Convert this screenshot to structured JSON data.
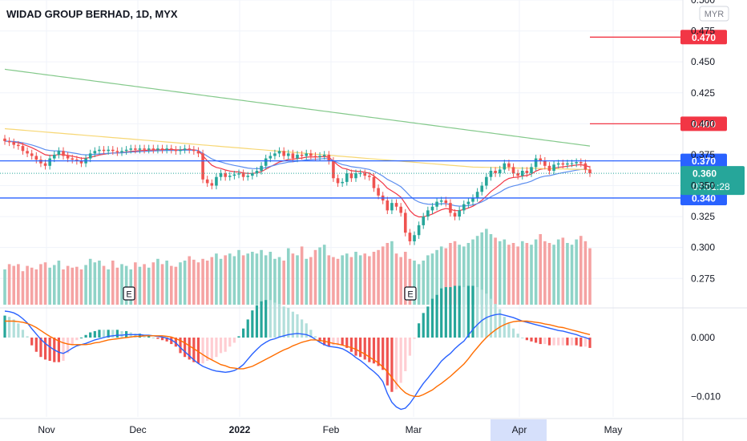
{
  "chart_data": {
    "type": "candlestick",
    "title": "WIDAD GROUP BERHAD, 1D, MYX",
    "currency": "MYR",
    "price_axis": {
      "range": [
        0.2525,
        0.5
      ],
      "ticks": [
        "0.500",
        "0.475",
        "0.450",
        "0.425",
        "0.400",
        "0.375",
        "0.350",
        "0.325",
        "0.300",
        "0.275"
      ]
    },
    "time_axis": {
      "labels": [
        "Nov",
        "Dec",
        "2022",
        "Feb",
        "Mar",
        "Apr",
        "May"
      ],
      "highlighted": "Apr"
    },
    "price_labels": [
      {
        "text": "0.470",
        "value": 0.47,
        "color": "#f23645",
        "kind": "line"
      },
      {
        "text": "0.400",
        "value": 0.4,
        "color": "#f23645",
        "kind": "line"
      },
      {
        "text": "0.370",
        "value": 0.37,
        "color": "#2962ff",
        "kind": "line"
      },
      {
        "text": "0.340",
        "value": 0.34,
        "color": "#2962ff",
        "kind": "line"
      },
      {
        "text": "0.360",
        "subtext": "07:01:28",
        "value": 0.36,
        "color": "#26a69a",
        "kind": "last"
      }
    ],
    "closes": [
      0.386,
      0.385,
      0.383,
      0.382,
      0.378,
      0.376,
      0.374,
      0.371,
      0.368,
      0.366,
      0.372,
      0.375,
      0.378,
      0.374,
      0.372,
      0.371,
      0.37,
      0.368,
      0.372,
      0.376,
      0.378,
      0.379,
      0.378,
      0.379,
      0.378,
      0.377,
      0.378,
      0.379,
      0.38,
      0.379,
      0.38,
      0.379,
      0.38,
      0.379,
      0.38,
      0.379,
      0.38,
      0.379,
      0.378,
      0.379,
      0.38,
      0.379,
      0.378,
      0.376,
      0.355,
      0.352,
      0.35,
      0.357,
      0.36,
      0.357,
      0.358,
      0.359,
      0.36,
      0.357,
      0.358,
      0.36,
      0.362,
      0.366,
      0.372,
      0.374,
      0.376,
      0.378,
      0.374,
      0.376,
      0.372,
      0.375,
      0.374,
      0.376,
      0.374,
      0.373,
      0.374,
      0.375,
      0.37,
      0.356,
      0.352,
      0.353,
      0.36,
      0.356,
      0.36,
      0.36,
      0.358,
      0.357,
      0.348,
      0.342,
      0.338,
      0.33,
      0.336,
      0.333,
      0.328,
      0.312,
      0.305,
      0.31,
      0.318,
      0.325,
      0.33,
      0.333,
      0.337,
      0.338,
      0.336,
      0.328,
      0.325,
      0.33,
      0.335,
      0.337,
      0.34,
      0.345,
      0.35,
      0.357,
      0.362,
      0.36,
      0.363,
      0.368,
      0.365,
      0.36,
      0.358,
      0.362,
      0.36,
      0.365,
      0.372,
      0.37,
      0.366,
      0.362,
      0.367,
      0.368,
      0.367,
      0.368,
      0.368,
      0.369,
      0.368,
      0.363,
      0.36
    ],
    "volume": {
      "axis_hidden": true,
      "values": [
        40,
        46,
        44,
        46,
        38,
        44,
        42,
        40,
        46,
        48,
        42,
        45,
        50,
        40,
        44,
        42,
        43,
        40,
        45,
        52,
        48,
        50,
        44,
        40,
        50,
        42,
        46,
        44,
        40,
        48,
        43,
        46,
        42,
        48,
        52,
        46,
        50,
        44,
        43,
        48,
        50,
        55,
        51,
        48,
        52,
        50,
        54,
        58,
        52,
        56,
        58,
        55,
        62,
        56,
        58,
        60,
        58,
        62,
        56,
        60,
        52,
        54,
        50,
        64,
        58,
        56,
        66,
        52,
        54,
        62,
        65,
        68,
        56,
        54,
        52,
        56,
        58,
        54,
        60,
        56,
        58,
        55,
        60,
        62,
        66,
        70,
        72,
        58,
        54,
        60,
        52,
        50,
        46,
        50,
        56,
        58,
        62,
        66,
        64,
        70,
        72,
        68,
        66,
        70,
        74,
        78,
        82,
        86,
        80,
        76,
        72,
        74,
        68,
        70,
        66,
        72,
        70,
        68,
        74,
        80,
        72,
        70,
        68,
        74,
        76,
        70,
        68,
        74,
        78,
        72,
        64
      ],
      "earnings_markers": [
        "E",
        "E"
      ]
    },
    "macd": {
      "axis": {
        "range": [
          -0.0135,
          0.0045
        ],
        "ticks": [
          "0.000",
          "−0.010"
        ]
      },
      "macd_line": [
        0.0045,
        0.0044,
        0.0042,
        0.0038,
        0.0032,
        0.0025,
        0.0015,
        0.0006,
        -0.0003,
        -0.001,
        -0.0016,
        -0.0021,
        -0.0025,
        -0.0027,
        -0.0023,
        -0.0018,
        -0.0014,
        -0.0012,
        -0.001,
        -0.0007,
        -0.0004,
        -0.0002,
        0.0,
        0.0002,
        0.0003,
        0.0004,
        0.0004,
        0.0005,
        0.0005,
        0.0005,
        0.0005,
        0.0004,
        0.0004,
        0.0003,
        0.0002,
        0.0001,
        -0.0001,
        -0.0004,
        -0.0009,
        -0.0017,
        -0.0024,
        -0.0031,
        -0.0038,
        -0.0044,
        -0.0049,
        -0.0052,
        -0.0055,
        -0.0057,
        -0.0058,
        -0.0059,
        -0.0058,
        -0.0056,
        -0.0052,
        -0.0046,
        -0.0037,
        -0.0028,
        -0.002,
        -0.0013,
        -0.0008,
        -0.0004,
        -0.0002,
        0.0001,
        0.0003,
        0.0005,
        0.0006,
        0.0007,
        0.0006,
        0.0005,
        0.0002,
        -0.0003,
        -0.0008,
        -0.0012,
        -0.0015,
        -0.0016,
        -0.0017,
        -0.0019,
        -0.0023,
        -0.0028,
        -0.0034,
        -0.0039,
        -0.0045,
        -0.0052,
        -0.0058,
        -0.0065,
        -0.0075,
        -0.0095,
        -0.011,
        -0.0118,
        -0.0122,
        -0.012,
        -0.0112,
        -0.0101,
        -0.0089,
        -0.0078,
        -0.0069,
        -0.0059,
        -0.005,
        -0.004,
        -0.0033,
        -0.0027,
        -0.0019,
        -0.0012,
        -0.0006,
        0.0004,
        0.0014,
        0.0022,
        0.0029,
        0.0034,
        0.0037,
        0.0039,
        0.004,
        0.0038,
        0.0036,
        0.0034,
        0.0031,
        0.0028,
        0.0026,
        0.0024,
        0.0022,
        0.002,
        0.0018,
        0.0016,
        0.0014,
        0.0012,
        0.0011,
        0.0009,
        0.0007,
        0.0005,
        0.0002,
        0.0,
        -0.0003
      ],
      "signal_line": [
        0.0028,
        0.0028,
        0.0028,
        0.0027,
        0.0026,
        0.0024,
        0.0021,
        0.0017,
        0.0012,
        0.0007,
        0.0002,
        -0.0002,
        -0.0006,
        -0.0009,
        -0.0011,
        -0.0012,
        -0.0012,
        -0.0012,
        -0.0012,
        -0.0011,
        -0.0009,
        -0.0008,
        -0.0006,
        -0.0004,
        -0.0003,
        -0.0002,
        -0.0001,
        0.0,
        0.0001,
        0.0002,
        0.0002,
        0.0003,
        0.0003,
        0.0003,
        0.0003,
        0.0003,
        0.0002,
        0.0001,
        -0.0002,
        -0.0005,
        -0.0009,
        -0.0014,
        -0.0019,
        -0.0024,
        -0.0029,
        -0.0034,
        -0.0038,
        -0.0042,
        -0.0046,
        -0.0048,
        -0.0051,
        -0.0052,
        -0.0053,
        -0.0053,
        -0.0051,
        -0.0049,
        -0.0045,
        -0.0041,
        -0.0037,
        -0.0033,
        -0.0029,
        -0.0025,
        -0.0021,
        -0.0018,
        -0.0014,
        -0.0011,
        -0.0008,
        -0.0006,
        -0.0004,
        -0.0004,
        -0.0005,
        -0.0006,
        -0.0008,
        -0.001,
        -0.0011,
        -0.0013,
        -0.0015,
        -0.0017,
        -0.002,
        -0.0024,
        -0.0028,
        -0.0033,
        -0.0038,
        -0.0043,
        -0.005,
        -0.0058,
        -0.0068,
        -0.0078,
        -0.0087,
        -0.0094,
        -0.0098,
        -0.01,
        -0.01,
        -0.0097,
        -0.0093,
        -0.0089,
        -0.0083,
        -0.0078,
        -0.0072,
        -0.0066,
        -0.0059,
        -0.0052,
        -0.0045,
        -0.0036,
        -0.0026,
        -0.0017,
        -0.0008,
        0.0,
        0.0007,
        0.0013,
        0.0018,
        0.0022,
        0.0025,
        0.0027,
        0.0028,
        0.0028,
        0.0028,
        0.0027,
        0.0026,
        0.0025,
        0.0023,
        0.0022,
        0.002,
        0.0018,
        0.0017,
        0.0015,
        0.0013,
        0.0011,
        0.0009,
        0.0007,
        0.0005
      ]
    },
    "colors": {
      "up": "#26a69a",
      "down": "#ef5350",
      "volume_up": "#8fd3c7",
      "volume_down": "#f5a3a3",
      "ma_fast": "#f23645",
      "ma_mid": "#5b8def",
      "ma_yellow": "#f7d774",
      "ma_slow": "#84c98b",
      "macd_line": "#2962ff",
      "signal_line": "#ff6d00",
      "level_red": "#f23645",
      "level_blue": "#2962ff"
    }
  }
}
